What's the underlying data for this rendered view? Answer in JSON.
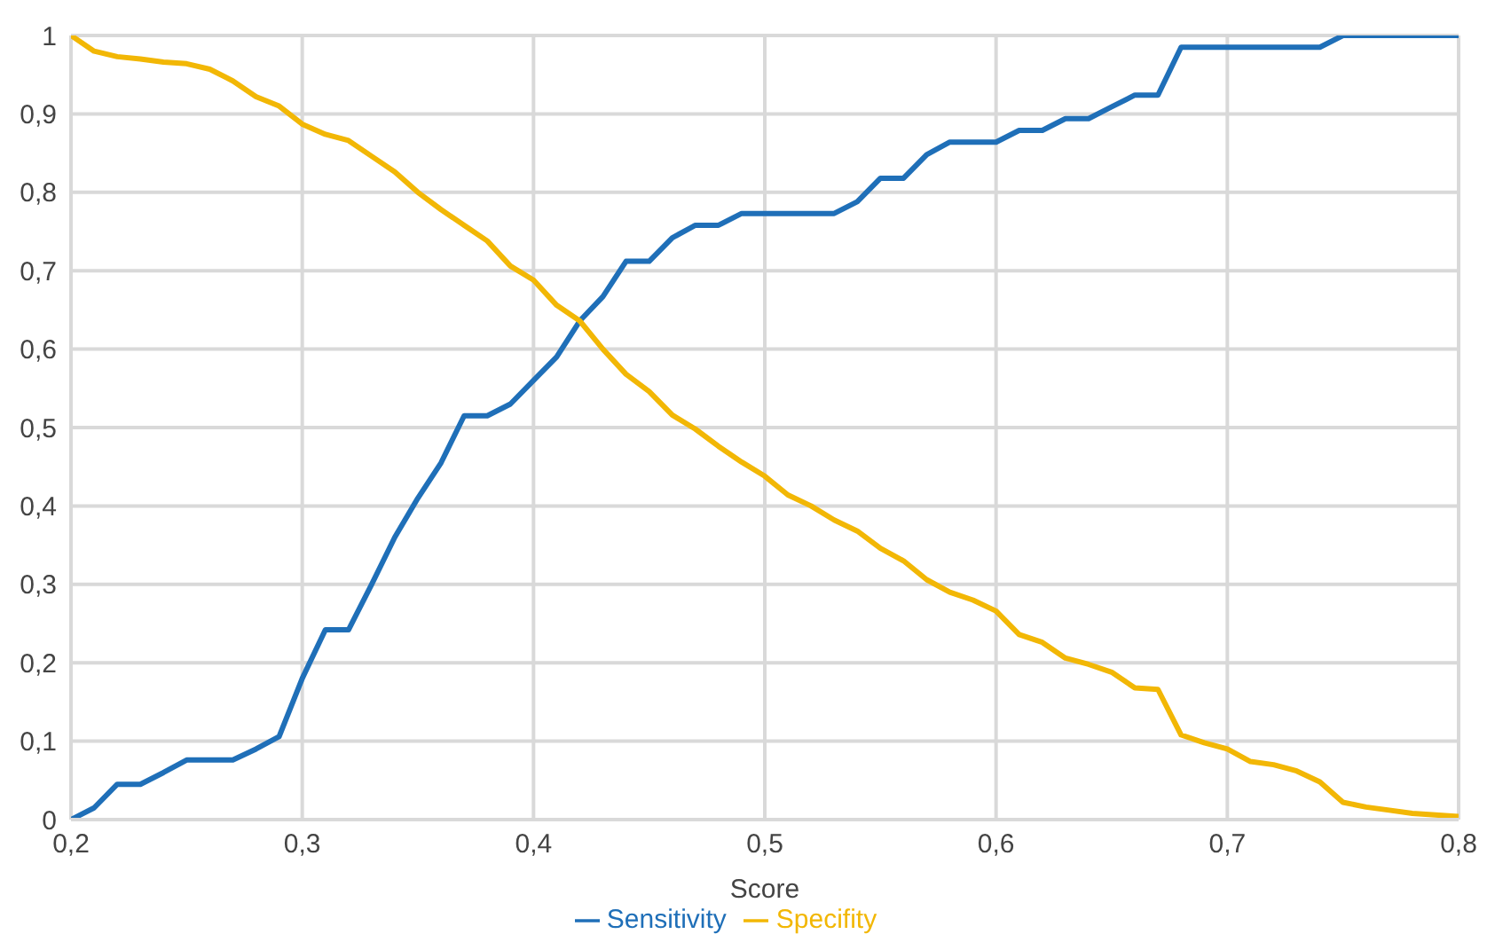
{
  "chart_data": {
    "type": "line",
    "xlabel": "Score",
    "x": [
      0.2,
      0.21,
      0.22,
      0.23,
      0.24,
      0.25,
      0.26,
      0.27,
      0.28,
      0.29,
      0.3,
      0.31,
      0.32,
      0.33,
      0.34,
      0.35,
      0.36,
      0.37,
      0.38,
      0.39,
      0.4,
      0.41,
      0.42,
      0.43,
      0.44,
      0.45,
      0.46,
      0.47,
      0.48,
      0.49,
      0.5,
      0.51,
      0.52,
      0.53,
      0.54,
      0.55,
      0.56,
      0.57,
      0.58,
      0.59,
      0.6,
      0.61,
      0.62,
      0.63,
      0.64,
      0.65,
      0.66,
      0.67,
      0.68,
      0.69,
      0.7,
      0.71,
      0.72,
      0.73,
      0.74,
      0.75,
      0.76,
      0.77,
      0.78,
      0.79,
      0.8
    ],
    "series": [
      {
        "name": "Sensitivity",
        "color": "#1f6fb8",
        "values": [
          0,
          0.015,
          0.045,
          0.045,
          0.06,
          0.076,
          0.076,
          0.076,
          0.09,
          0.106,
          0.18,
          0.242,
          0.242,
          0.3,
          0.36,
          0.41,
          0.455,
          0.515,
          0.515,
          0.53,
          0.56,
          0.59,
          0.636,
          0.667,
          0.712,
          0.712,
          0.742,
          0.758,
          0.758,
          0.773,
          0.773,
          0.773,
          0.773,
          0.773,
          0.788,
          0.818,
          0.818,
          0.848,
          0.864,
          0.864,
          0.864,
          0.879,
          0.879,
          0.894,
          0.894,
          0.909,
          0.924,
          0.924,
          0.985,
          0.985,
          0.985,
          0.985,
          0.985,
          0.985,
          0.985,
          1,
          1,
          1,
          1,
          1,
          1
        ]
      },
      {
        "name": "Specifity",
        "color": "#f2b705",
        "values": [
          1,
          0.98,
          0.973,
          0.97,
          0.966,
          0.964,
          0.957,
          0.942,
          0.922,
          0.91,
          0.887,
          0.874,
          0.866,
          0.846,
          0.826,
          0.8,
          0.778,
          0.758,
          0.738,
          0.706,
          0.688,
          0.656,
          0.636,
          0.6,
          0.568,
          0.546,
          0.516,
          0.498,
          0.476,
          0.456,
          0.438,
          0.414,
          0.4,
          0.382,
          0.368,
          0.346,
          0.33,
          0.306,
          0.29,
          0.28,
          0.266,
          0.236,
          0.226,
          0.206,
          0.198,
          0.188,
          0.168,
          0.166,
          0.108,
          0.098,
          0.09,
          0.074,
          0.07,
          0.062,
          0.048,
          0.022,
          0.016,
          0.012,
          0.008,
          0.006,
          0.004
        ]
      }
    ],
    "xlim": [
      0.2,
      0.8
    ],
    "xticks": [
      {
        "value": 0.2,
        "label": "0,2"
      },
      {
        "value": 0.3,
        "label": "0,3"
      },
      {
        "value": 0.4,
        "label": "0,4"
      },
      {
        "value": 0.5,
        "label": "0,5"
      },
      {
        "value": 0.6,
        "label": "0,6"
      },
      {
        "value": 0.7,
        "label": "0,7"
      },
      {
        "value": 0.8,
        "label": "0,8"
      }
    ],
    "ylim": [
      0,
      1
    ],
    "yticks": [
      0,
      {
        "value": 0.1,
        "label": "0,1"
      },
      {
        "value": 0.2,
        "label": "0,2"
      },
      {
        "value": 0.3,
        "label": "0,3"
      },
      {
        "value": 0.4,
        "label": "0,4"
      },
      {
        "value": 0.5,
        "label": "0,5"
      },
      {
        "value": 0.6,
        "label": "0,6"
      },
      {
        "value": 0.7,
        "label": "0,7"
      },
      {
        "value": 0.8,
        "label": "0,8"
      },
      {
        "value": 0.9,
        "label": "0,9"
      },
      1
    ],
    "grid": true,
    "legend": "bottom",
    "marker": "none",
    "line_style": "solid"
  }
}
